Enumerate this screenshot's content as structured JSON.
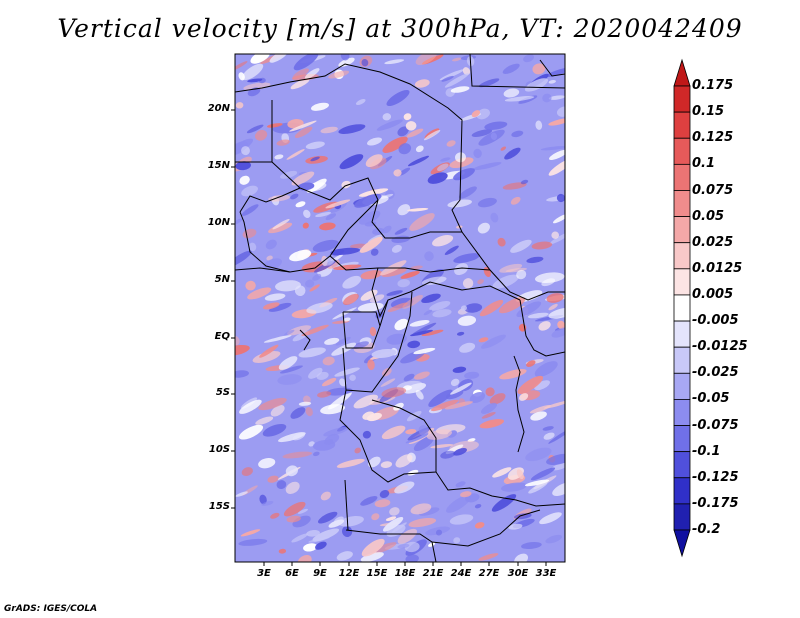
{
  "title": "Vertical velocity [m/s] at 300hPa, VT: 2020042409",
  "lat_labels": [
    "20N",
    "15N",
    "10N",
    "5N",
    "EQ",
    "5S",
    "10S",
    "15S"
  ],
  "lon_labels": [
    "3E",
    "6E",
    "9E",
    "12E",
    "15E",
    "18E",
    "21E",
    "24E",
    "27E",
    "30E",
    "33E"
  ],
  "colorbar": {
    "labels": [
      "0.175",
      "0.15",
      "0.125",
      "0.1",
      "0.075",
      "0.05",
      "0.025",
      "0.0125",
      "0.005",
      "-0.005",
      "-0.0125",
      "-0.025",
      "-0.05",
      "-0.075",
      "-0.1",
      "-0.125",
      "-0.175",
      "-0.2"
    ],
    "colors": [
      "#c01818",
      "#d02828",
      "#de4040",
      "#e65a5a",
      "#ec7474",
      "#f08c8c",
      "#f4a8a8",
      "#f8c8c8",
      "#fce4e4",
      "#ffffff",
      "#e4e4fc",
      "#c8c8f8",
      "#a8a8f4",
      "#8c8cf0",
      "#7070e8",
      "#5050dc",
      "#3030c8",
      "#2020b0",
      "#1010a0"
    ]
  },
  "credit": "GrADS: IGES/COLA"
}
